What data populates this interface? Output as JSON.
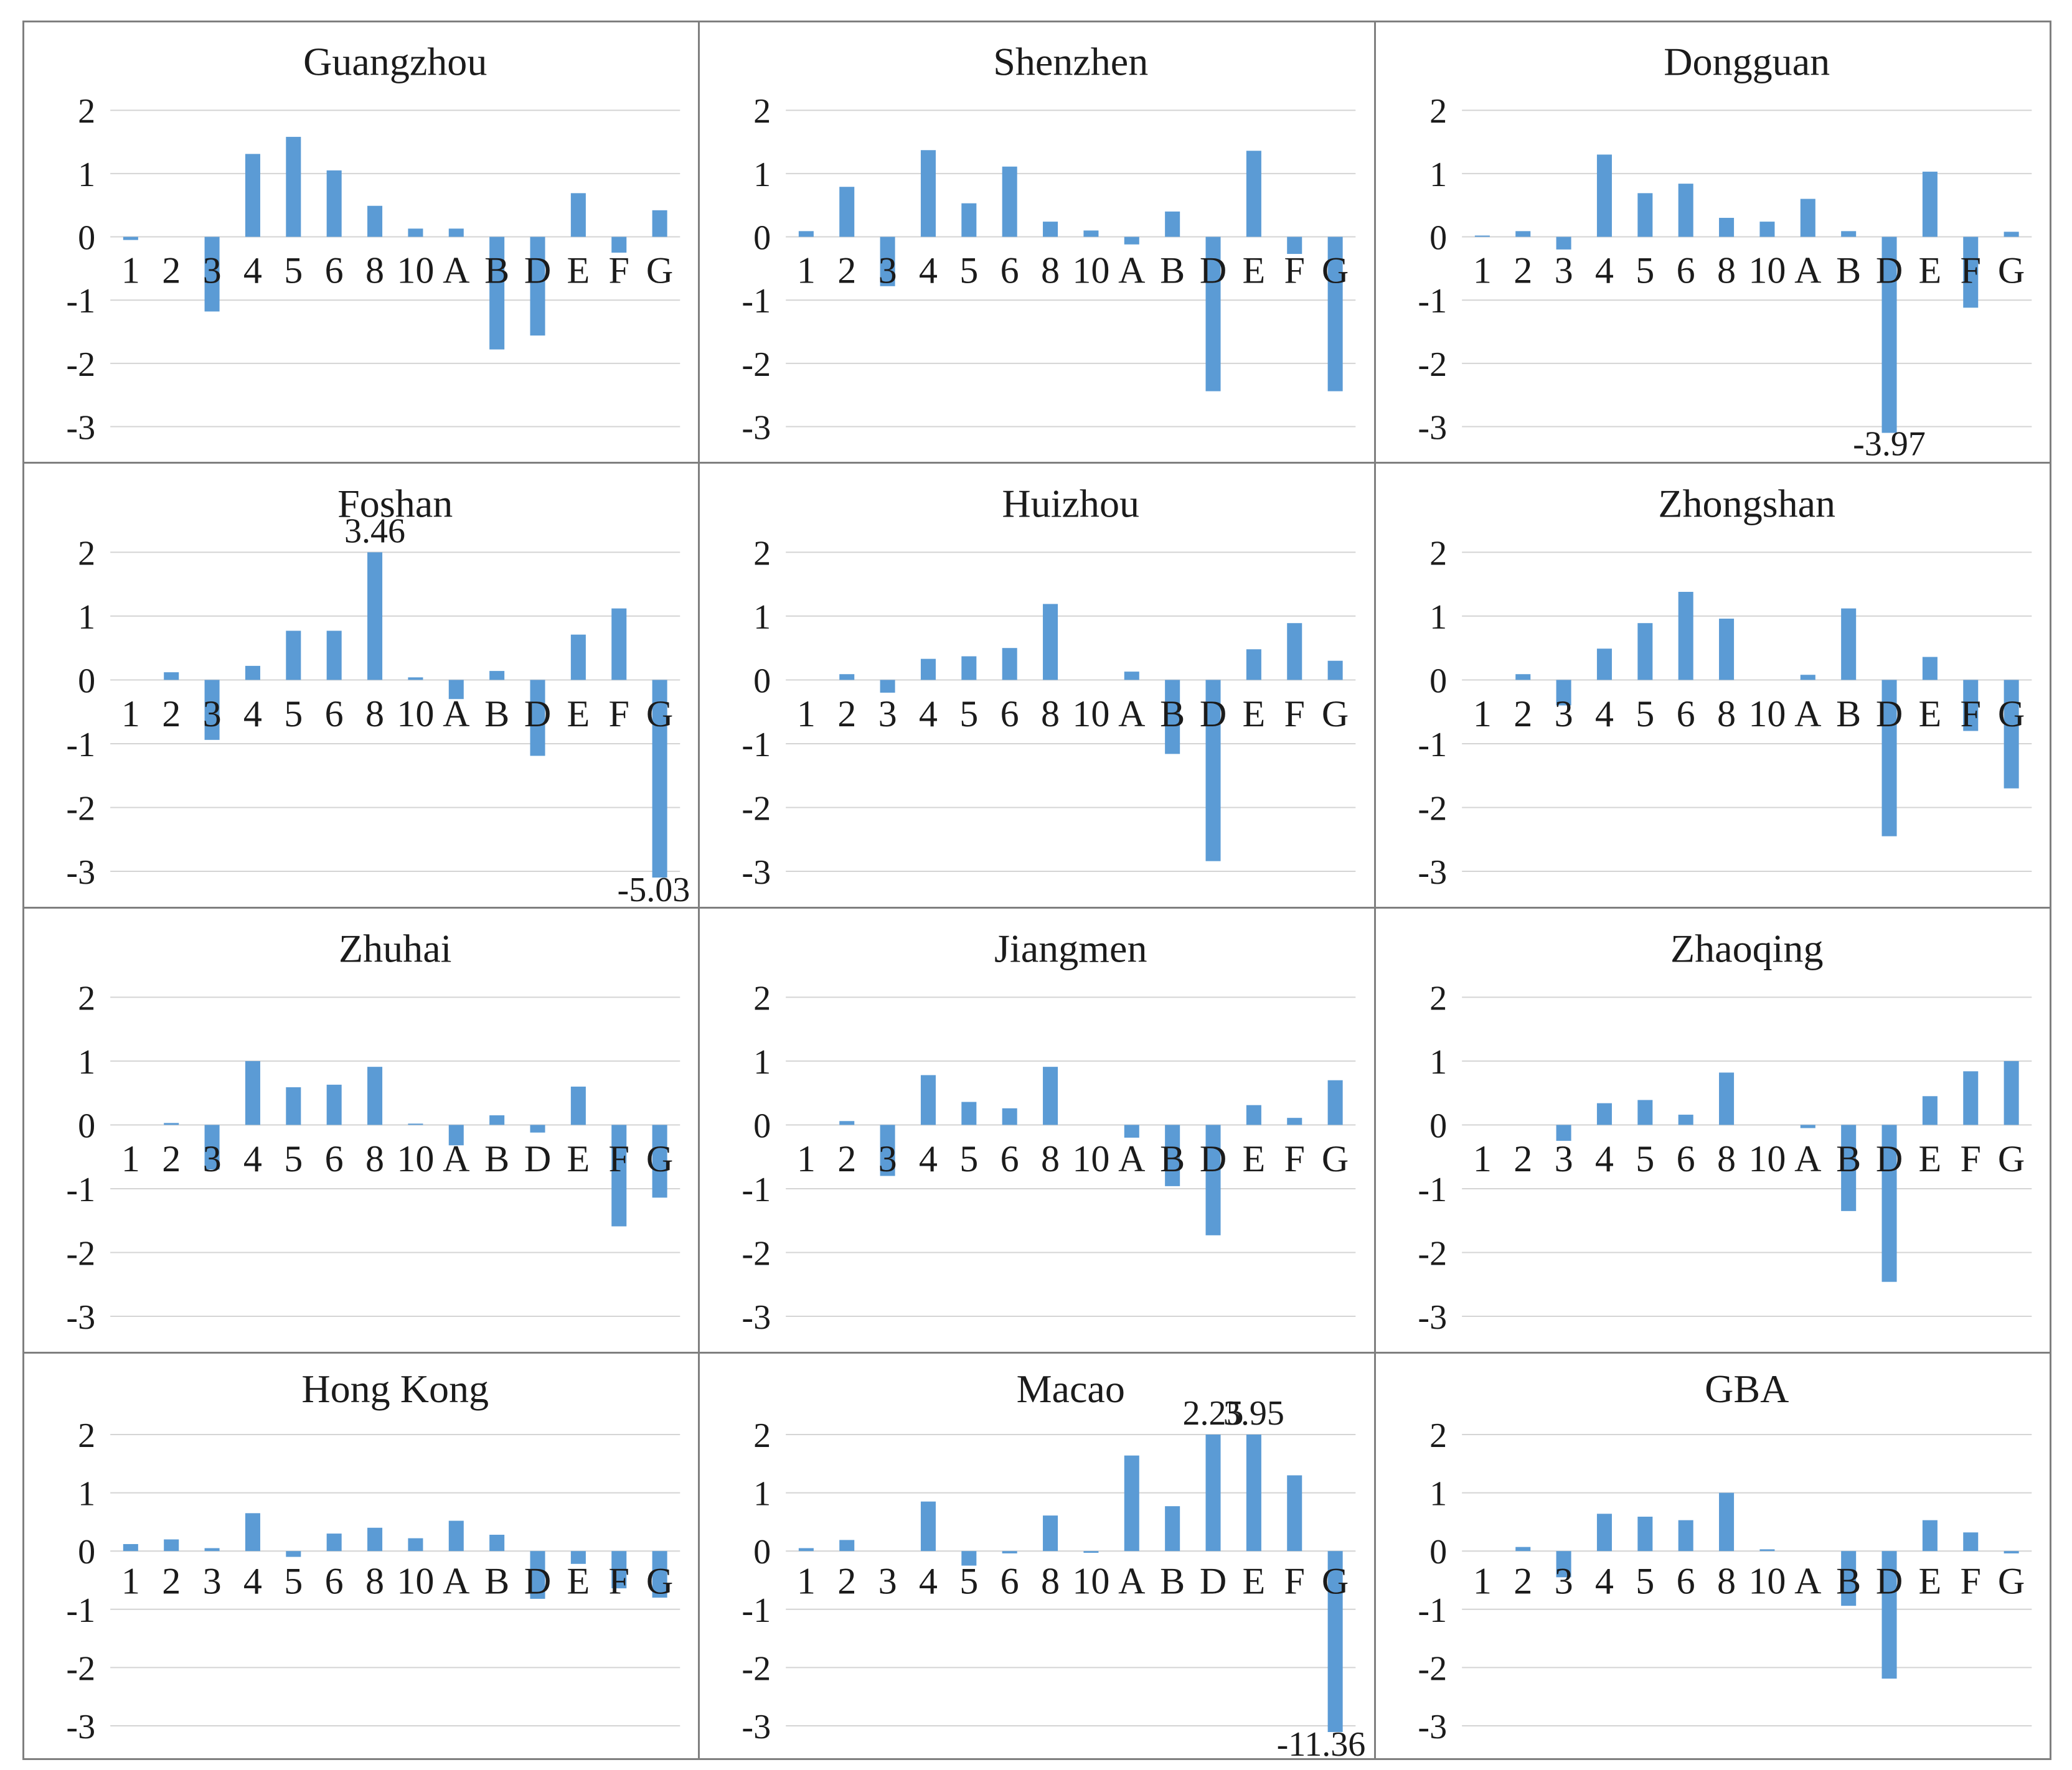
{
  "page": {
    "background_color": "#ffffff",
    "frame_color": "#7f7f7f"
  },
  "chart_data": {
    "type": "bar",
    "layout": "4x3 grid of small multiples",
    "categories": [
      "1",
      "2",
      "3",
      "4",
      "5",
      "6",
      "8",
      "10",
      "A",
      "B",
      "D",
      "E",
      "F",
      "G"
    ],
    "yticks": [
      2,
      1,
      0,
      -1,
      -2,
      -3
    ],
    "ylim": [
      -3,
      2
    ],
    "grid_on": true,
    "legend": "none",
    "bar_color": "#5B9BD5",
    "gridline_color": "#d4d4d4",
    "charts": [
      {
        "title": "Guangzhou",
        "values": [
          -0.05,
          0,
          -1.18,
          1.31,
          1.58,
          1.05,
          0.49,
          0.13,
          0.13,
          -1.78,
          -1.56,
          0.69,
          -0.25,
          0.42
        ],
        "annotations": []
      },
      {
        "title": "Shenzhen",
        "values": [
          0.09,
          0.79,
          -0.78,
          1.37,
          0.53,
          1.11,
          0.24,
          0.1,
          -0.12,
          0.4,
          -2.44,
          1.36,
          -0.27,
          -2.44
        ],
        "annotations": []
      },
      {
        "title": "Dongguan",
        "values": [
          0.02,
          0.09,
          -0.2,
          1.3,
          0.69,
          0.84,
          0.3,
          0.24,
          0.6,
          0.09,
          -3.97,
          1.03,
          -1.12,
          0.08
        ],
        "annotations": [
          {
            "category": "D",
            "text": "-3.97",
            "position": "below"
          }
        ]
      },
      {
        "title": "Foshan",
        "values": [
          0,
          0.12,
          -0.94,
          0.22,
          0.77,
          0.77,
          3.46,
          0.04,
          -0.3,
          0.14,
          -1.19,
          0.71,
          1.12,
          -5.03
        ],
        "annotations": [
          {
            "category": "8",
            "text": "3.46",
            "position": "above"
          },
          {
            "category": "G",
            "text": "-5.03",
            "position": "below-right"
          }
        ]
      },
      {
        "title": "Huizhou",
        "values": [
          0,
          0.09,
          -0.2,
          0.33,
          0.37,
          0.5,
          1.19,
          0,
          0.13,
          -1.16,
          -2.84,
          0.48,
          0.89,
          0.3
        ],
        "annotations": []
      },
      {
        "title": "Zhongshan",
        "values": [
          0,
          0.09,
          -0.4,
          0.49,
          0.89,
          1.38,
          0.96,
          0,
          0.08,
          1.12,
          -2.45,
          0.36,
          -0.8,
          -1.7
        ],
        "annotations": []
      },
      {
        "title": "Zhuhai",
        "values": [
          0,
          0.03,
          -0.7,
          1.0,
          0.59,
          0.63,
          0.91,
          0.02,
          -0.32,
          0.15,
          -0.12,
          0.6,
          -1.59,
          -1.14
        ],
        "annotations": []
      },
      {
        "title": "Jiangmen",
        "values": [
          0,
          0.06,
          -0.8,
          0.78,
          0.36,
          0.26,
          0.91,
          0,
          -0.2,
          -0.96,
          -1.73,
          0.31,
          0.11,
          0.7
        ],
        "annotations": []
      },
      {
        "title": "Zhaoqing",
        "values": [
          0,
          0,
          -0.25,
          0.34,
          0.39,
          0.16,
          0.82,
          0,
          -0.05,
          -1.35,
          -2.46,
          0.45,
          0.84,
          1.0
        ],
        "annotations": []
      },
      {
        "title": "Hong Kong",
        "values": [
          0.12,
          0.2,
          0.05,
          0.65,
          -0.1,
          0.3,
          0.4,
          0.22,
          0.52,
          0.28,
          -0.82,
          -0.22,
          -0.64,
          -0.8
        ],
        "annotations": []
      },
      {
        "title": "Macao",
        "values": [
          0.05,
          0.19,
          0,
          0.85,
          -0.25,
          -0.04,
          0.61,
          -0.03,
          1.64,
          0.77,
          2.25,
          3.95,
          1.3,
          -11.36
        ],
        "annotations": [
          {
            "category": "D",
            "text": "2.25",
            "position": "above"
          },
          {
            "category": "E",
            "text": "3.95",
            "position": "above"
          },
          {
            "category": "G",
            "text": "-11.36",
            "position": "below-right"
          }
        ]
      },
      {
        "title": "GBA",
        "values": [
          0,
          0.07,
          -0.45,
          0.64,
          0.59,
          0.53,
          1.0,
          0.03,
          0,
          -0.94,
          -2.19,
          0.53,
          0.32,
          -0.04
        ],
        "annotations": []
      }
    ]
  }
}
